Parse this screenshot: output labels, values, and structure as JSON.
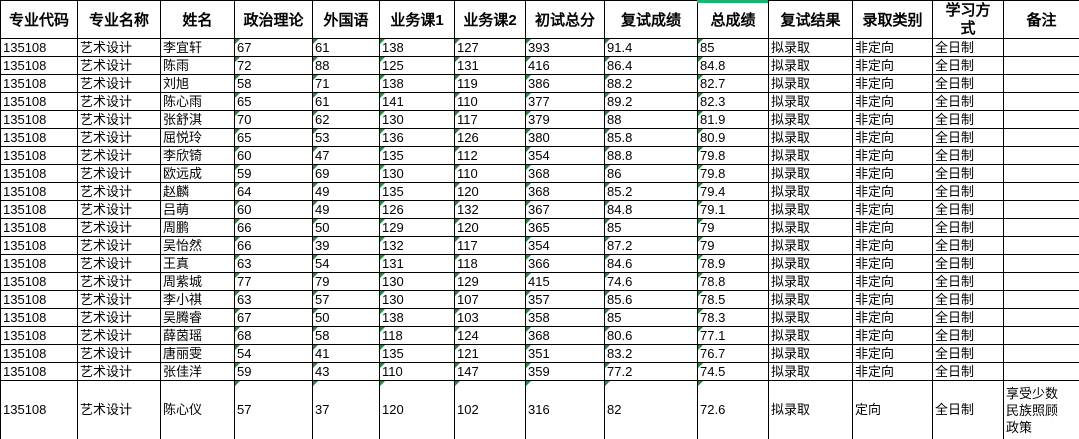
{
  "colors": {
    "accent_line": "#1db373",
    "text_marker": "#1f8b3b",
    "grid_border": "#000000",
    "background": "#ffffff"
  },
  "table": {
    "columns": [
      {
        "key": "major-code",
        "label": "专业代码"
      },
      {
        "key": "major-name",
        "label": "专业名称"
      },
      {
        "key": "name",
        "label": "姓名"
      },
      {
        "key": "politics",
        "label": "政治理论"
      },
      {
        "key": "foreign-language",
        "label": "外国语"
      },
      {
        "key": "course1",
        "label": "业务课1"
      },
      {
        "key": "course2",
        "label": "业务课2"
      },
      {
        "key": "initial-total",
        "label": "初试总分"
      },
      {
        "key": "retest-score",
        "label": "复试成绩"
      },
      {
        "key": "total-score",
        "label": "总成绩"
      },
      {
        "key": "retest-result",
        "label": "复试结果"
      },
      {
        "key": "admission-category",
        "label": "录取类别"
      },
      {
        "key": "study-mode",
        "label": "学习方式"
      },
      {
        "key": "remark",
        "label": "备注"
      }
    ],
    "marker_columns": [
      3,
      4,
      5,
      6,
      7,
      8,
      9
    ],
    "rows": [
      [
        "135108",
        "艺术设计",
        "李宜轩",
        "67",
        "61",
        "138",
        "127",
        "393",
        "91.4",
        "85",
        "拟录取",
        "非定向",
        "全日制",
        ""
      ],
      [
        "135108",
        "艺术设计",
        "陈雨",
        "72",
        "88",
        "125",
        "131",
        "416",
        "86.4",
        "84.8",
        "拟录取",
        "非定向",
        "全日制",
        ""
      ],
      [
        "135108",
        "艺术设计",
        "刘旭",
        "58",
        "71",
        "138",
        "119",
        "386",
        "88.2",
        "82.7",
        "拟录取",
        "非定向",
        "全日制",
        ""
      ],
      [
        "135108",
        "艺术设计",
        "陈心雨",
        "65",
        "61",
        "141",
        "110",
        "377",
        "89.2",
        "82.3",
        "拟录取",
        "非定向",
        "全日制",
        ""
      ],
      [
        "135108",
        "艺术设计",
        "张舒淇",
        "70",
        "62",
        "130",
        "117",
        "379",
        "88",
        "81.9",
        "拟录取",
        "非定向",
        "全日制",
        ""
      ],
      [
        "135108",
        "艺术设计",
        "屈悦玲",
        "65",
        "53",
        "136",
        "126",
        "380",
        "85.8",
        "80.9",
        "拟录取",
        "非定向",
        "全日制",
        ""
      ],
      [
        "135108",
        "艺术设计",
        "李欣锜",
        "60",
        "47",
        "135",
        "112",
        "354",
        "88.8",
        "79.8",
        "拟录取",
        "非定向",
        "全日制",
        ""
      ],
      [
        "135108",
        "艺术设计",
        "欧远成",
        "59",
        "69",
        "130",
        "110",
        "368",
        "86",
        "79.8",
        "拟录取",
        "非定向",
        "全日制",
        ""
      ],
      [
        "135108",
        "艺术设计",
        "赵麟",
        "64",
        "49",
        "135",
        "120",
        "368",
        "85.2",
        "79.4",
        "拟录取",
        "非定向",
        "全日制",
        ""
      ],
      [
        "135108",
        "艺术设计",
        "吕萌",
        "60",
        "49",
        "126",
        "132",
        "367",
        "84.8",
        "79.1",
        "拟录取",
        "非定向",
        "全日制",
        ""
      ],
      [
        "135108",
        "艺术设计",
        "周鹏",
        "66",
        "50",
        "129",
        "120",
        "365",
        "85",
        "79",
        "拟录取",
        "非定向",
        "全日制",
        ""
      ],
      [
        "135108",
        "艺术设计",
        "吴怡然",
        "66",
        "39",
        "132",
        "117",
        "354",
        "87.2",
        "79",
        "拟录取",
        "非定向",
        "全日制",
        ""
      ],
      [
        "135108",
        "艺术设计",
        "王真",
        "63",
        "54",
        "131",
        "118",
        "366",
        "84.6",
        "78.9",
        "拟录取",
        "非定向",
        "全日制",
        ""
      ],
      [
        "135108",
        "艺术设计",
        "周紫城",
        "77",
        "79",
        "130",
        "129",
        "415",
        "74.6",
        "78.8",
        "拟录取",
        "非定向",
        "全日制",
        ""
      ],
      [
        "135108",
        "艺术设计",
        "李小祺",
        "63",
        "57",
        "130",
        "107",
        "357",
        "85.6",
        "78.5",
        "拟录取",
        "非定向",
        "全日制",
        ""
      ],
      [
        "135108",
        "艺术设计",
        "吴腾睿",
        "67",
        "50",
        "138",
        "103",
        "358",
        "85",
        "78.3",
        "拟录取",
        "非定向",
        "全日制",
        ""
      ],
      [
        "135108",
        "艺术设计",
        "薛茵瑶",
        "68",
        "58",
        "118",
        "124",
        "368",
        "80.6",
        "77.1",
        "拟录取",
        "非定向",
        "全日制",
        ""
      ],
      [
        "135108",
        "艺术设计",
        "唐丽雯",
        "54",
        "41",
        "135",
        "121",
        "351",
        "83.2",
        "76.7",
        "拟录取",
        "非定向",
        "全日制",
        ""
      ],
      [
        "135108",
        "艺术设计",
        "张佳洋",
        "59",
        "43",
        "110",
        "147",
        "359",
        "77.2",
        "74.5",
        "拟录取",
        "非定向",
        "全日制",
        ""
      ],
      [
        "135108",
        "艺术设计",
        "陈心仪",
        "57",
        "37",
        "120",
        "102",
        "316",
        "82",
        "72.6",
        "拟录取",
        "定向",
        "全日制",
        "享受少数民族照顾政策"
      ]
    ]
  }
}
